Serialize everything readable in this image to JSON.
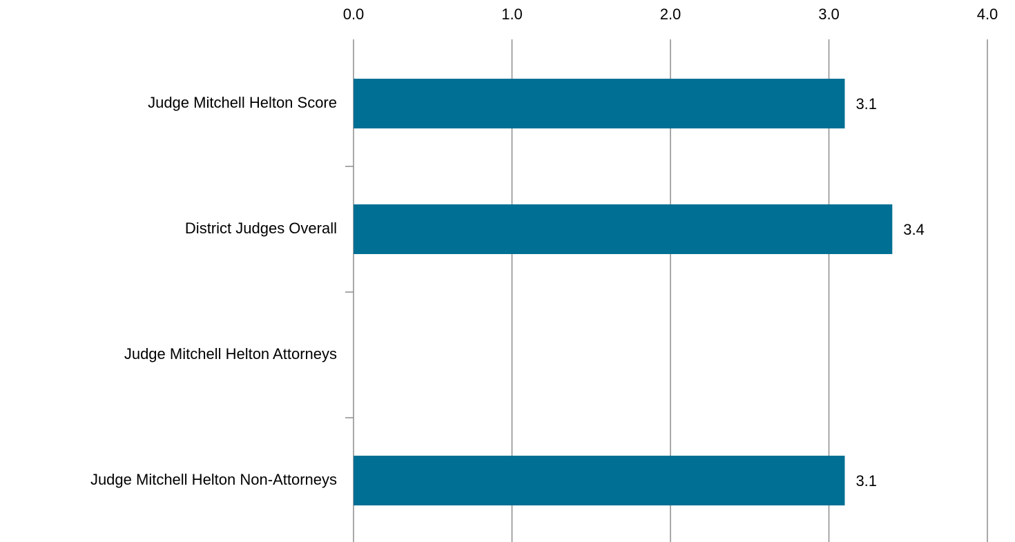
{
  "chart_data": {
    "type": "bar",
    "orientation": "horizontal",
    "categories": [
      "Judge Mitchell Helton Score",
      "District Judges Overall",
      "Judge Mitchell Helton Attorneys",
      "Judge Mitchell Helton Non-Attorneys"
    ],
    "values": [
      3.1,
      3.4,
      null,
      3.1
    ],
    "color": "#006f94",
    "xlim": [
      0,
      4
    ],
    "xticks": [
      {
        "value": 0,
        "label": "0.0"
      },
      {
        "value": 1,
        "label": "1.0"
      },
      {
        "value": 2,
        "label": "2.0"
      },
      {
        "value": 3,
        "label": "3.0"
      },
      {
        "value": 4,
        "label": "4.0"
      }
    ],
    "grid": true
  }
}
